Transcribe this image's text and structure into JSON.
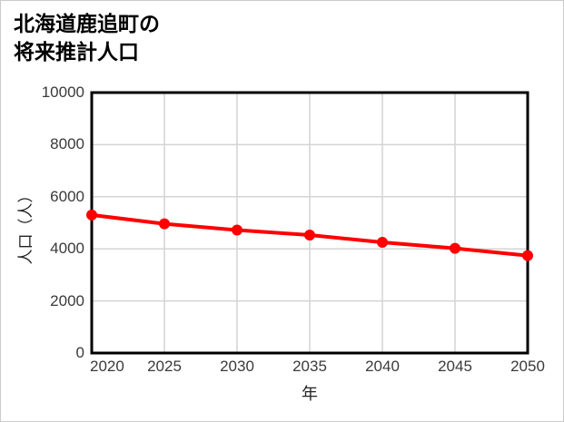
{
  "title": {
    "line1": "北海道鹿追町の",
    "line2": "将来推計人口"
  },
  "chart_data": {
    "type": "line",
    "title": "北海道鹿追町の将来推計人口",
    "x": [
      2020,
      2025,
      2030,
      2035,
      2040,
      2045,
      2050
    ],
    "series": [
      {
        "name": "将来推計人口",
        "values": [
          5300,
          4960,
          4720,
          4530,
          4250,
          4020,
          3740
        ],
        "color": "#ff0000",
        "marker": "circle"
      }
    ],
    "xlabel": "年",
    "ylabel": "人口（人）",
    "xlim": [
      2020,
      2050
    ],
    "ylim": [
      0,
      10000
    ],
    "xticks": [
      2020,
      2025,
      2030,
      2035,
      2040,
      2045,
      2050
    ],
    "yticks": [
      0,
      2000,
      4000,
      6000,
      8000,
      10000
    ],
    "grid": true,
    "legend": "none",
    "frame_color": "#000000",
    "grid_color": "#d4d4d4",
    "tick_label_color": "#3a3a3a",
    "background_color": "#ffffff"
  }
}
